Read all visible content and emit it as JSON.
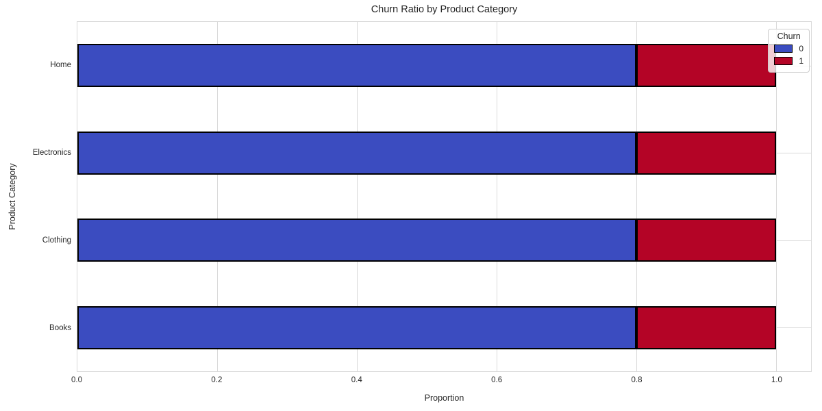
{
  "title": "Churn Ratio by Product Category",
  "chart_data": {
    "type": "bar",
    "orientation": "horizontal",
    "stacked": true,
    "title": "Churn Ratio by Product Category",
    "xlabel": "Proportion",
    "ylabel": "Product Category",
    "categories": [
      "Home",
      "Electronics",
      "Clothing",
      "Books"
    ],
    "series": [
      {
        "name": "0",
        "color": "#3B4CC0",
        "values": [
          0.8,
          0.8,
          0.8,
          0.8
        ]
      },
      {
        "name": "1",
        "color": "#B40426",
        "values": [
          0.2,
          0.2,
          0.2,
          0.2
        ]
      }
    ],
    "xlim": [
      0,
      1.05
    ],
    "xticks": [
      {
        "value": 0.0,
        "label": "0.0"
      },
      {
        "value": 0.2,
        "label": "0.2"
      },
      {
        "value": 0.4,
        "label": "0.4"
      },
      {
        "value": 0.6,
        "label": "0.6"
      },
      {
        "value": 0.8,
        "label": "0.8"
      },
      {
        "value": 1.0,
        "label": "1.0"
      }
    ],
    "grid": true,
    "bar_edge_color": "#000000",
    "legend": {
      "title": "Churn",
      "position": "upper right",
      "entries": [
        {
          "label": "0",
          "color": "#3B4CC0"
        },
        {
          "label": "1",
          "color": "#B40426"
        }
      ]
    }
  },
  "style": {
    "grid_color": "#d9d9d9",
    "text_color": "#262626",
    "background": "#ffffff"
  }
}
